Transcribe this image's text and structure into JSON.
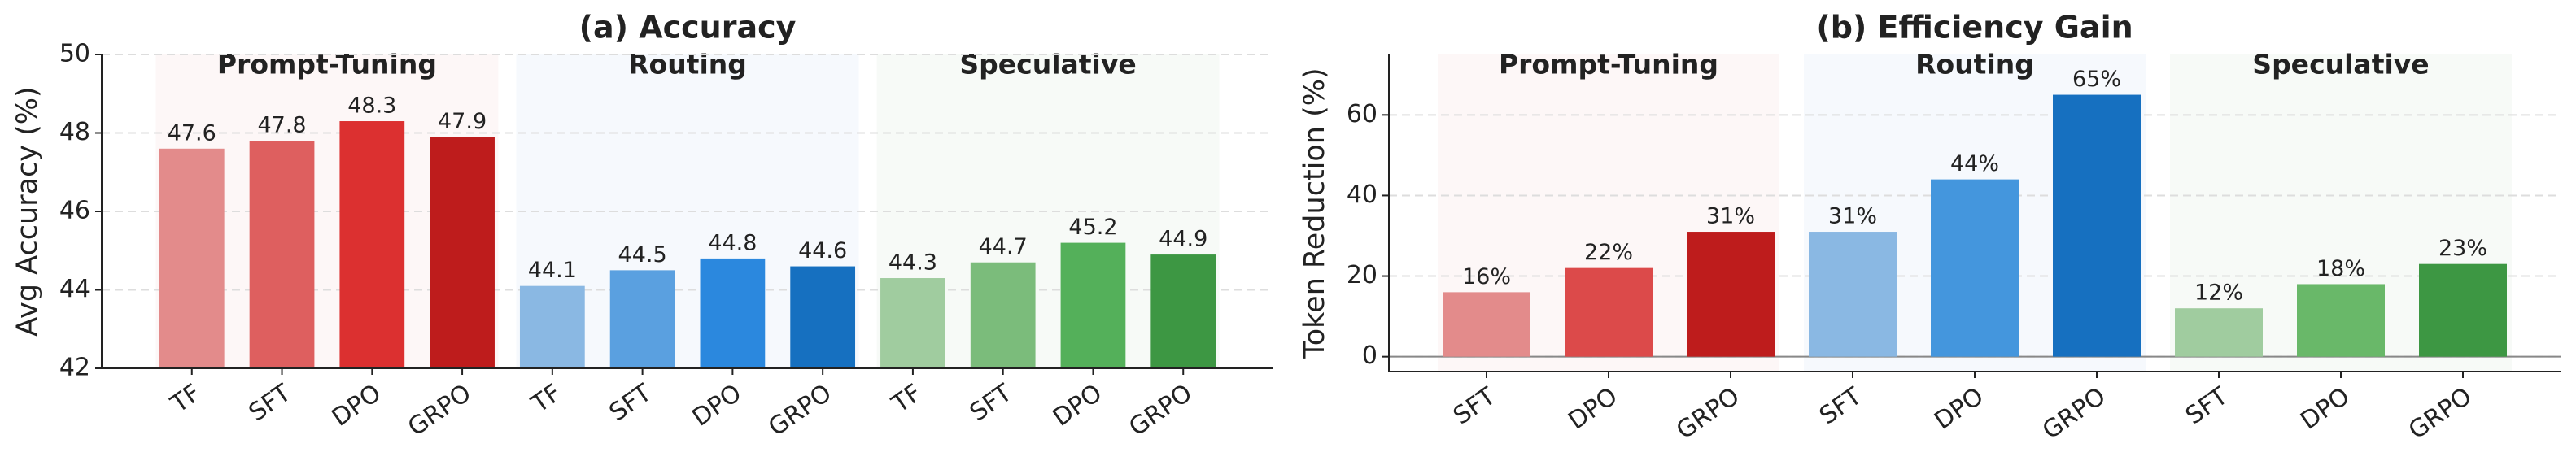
{
  "chart_data": [
    {
      "type": "bar",
      "title": "(a) Accuracy",
      "y_label": "Avg Accuracy (%)",
      "ylim": [
        42,
        50
      ],
      "yticks": [
        42,
        44,
        46,
        48,
        50
      ],
      "grid": true,
      "series": [
        {
          "name": "Prompt-Tuning",
          "color": "#c62828",
          "categories": [
            "TF",
            "SFT",
            "DPO",
            "GRPO"
          ],
          "values": [
            47.6,
            47.8,
            48.3,
            47.9
          ],
          "bar_colors": [
            "#e38b8b",
            "#de5f5f",
            "#dc3030",
            "#be1c1c"
          ]
        },
        {
          "name": "Routing",
          "color": "#1565c0",
          "categories": [
            "TF",
            "SFT",
            "DPO",
            "GRPO"
          ],
          "values": [
            44.1,
            44.5,
            44.8,
            44.6
          ],
          "bar_colors": [
            "#8ab8e3",
            "#5aa0e0",
            "#2b88de",
            "#1670c0"
          ]
        },
        {
          "name": "Speculative",
          "color": "#2e7d32",
          "categories": [
            "TF",
            "SFT",
            "DPO",
            "GRPO"
          ],
          "values": [
            44.3,
            44.7,
            45.2,
            44.9
          ],
          "bar_colors": [
            "#a0cc9f",
            "#7bbc7b",
            "#54b05a",
            "#3d9743"
          ]
        }
      ]
    },
    {
      "type": "bar",
      "title": "(b) Efficiency Gain",
      "y_label": "Token Reduction (%)",
      "ylim": [
        -3.7,
        75
      ],
      "yticks": [
        0,
        20,
        40,
        60
      ],
      "grid": true,
      "zero_line": true,
      "series": [
        {
          "name": "Prompt-Tuning",
          "color": "#c62828",
          "categories": [
            "SFT",
            "DPO",
            "GRPO"
          ],
          "values": [
            16,
            22,
            31
          ],
          "value_labels": [
            "16%",
            "22%",
            "31%"
          ],
          "bar_colors": [
            "#e38b8b",
            "#dc4a4a",
            "#be1c1c"
          ]
        },
        {
          "name": "Routing",
          "color": "#1565c0",
          "categories": [
            "SFT",
            "DPO",
            "GRPO"
          ],
          "values": [
            31,
            44,
            65
          ],
          "value_labels": [
            "31%",
            "44%",
            "65%"
          ],
          "bar_colors": [
            "#8ab8e3",
            "#4496dd",
            "#1670c0"
          ]
        },
        {
          "name": "Speculative",
          "color": "#2e7d32",
          "categories": [
            "SFT",
            "DPO",
            "GRPO"
          ],
          "values": [
            12,
            18,
            23
          ],
          "value_labels": [
            "12%",
            "18%",
            "23%"
          ],
          "bar_colors": [
            "#a0cc9f",
            "#69b869",
            "#3d9743"
          ]
        }
      ]
    }
  ]
}
